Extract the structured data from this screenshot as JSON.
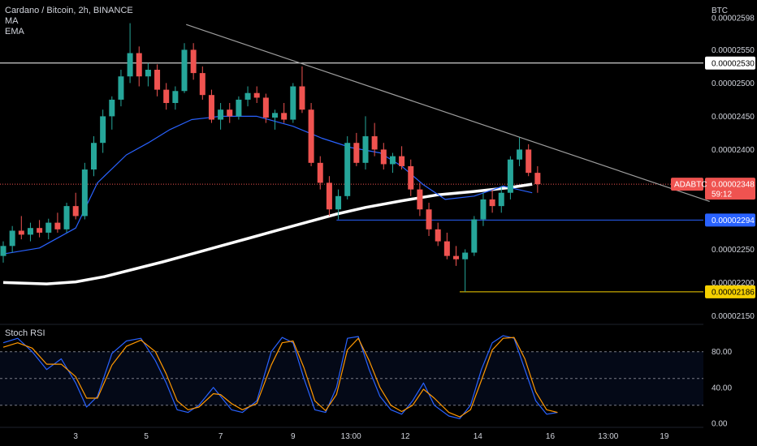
{
  "legend": {
    "symbol_line": "Cardano / Bitcoin, 2h, BINANCE",
    "ma": "MA",
    "ema": "EMA",
    "stoch_rsi": "Stoch RSI"
  },
  "colors": {
    "background": "#000000",
    "up": "#26a69a",
    "down": "#ef5350",
    "ma_line": "#ffffff",
    "ema_line": "#2962ff",
    "stoch_k": "#2962ff",
    "stoch_d": "#ff9800",
    "trendline": "#9e9e9e",
    "resistance": "#ffffff",
    "support": "#2962ff",
    "low_line": "#f5d000"
  },
  "chart_data": [
    {
      "type": "candlestick",
      "title": "Cardano / Bitcoin, 2h, BINANCE",
      "y_unit": "BTC",
      "ylim": [
        2.142e-05,
        2.62e-05
      ],
      "y_ticks": [
        "0.00002598",
        "0.00002550",
        "0.00002500",
        "0.00002450",
        "0.00002400",
        "0.00002250",
        "0.00002200",
        "0.00002150"
      ],
      "x_ticks": [
        "3",
        "5",
        "7",
        "9",
        "13:00",
        "12",
        "14",
        "16",
        "13:00",
        "19"
      ],
      "series": [
        {
          "name": "MA",
          "type": "line",
          "values": [
            [
              0,
              2.2e-05
            ],
            [
              1.2,
              2.198e-05
            ],
            [
              2.0,
              2.201e-05
            ],
            [
              2.8,
              2.209e-05
            ],
            [
              3.6,
              2.22e-05
            ],
            [
              4.4,
              2.231e-05
            ],
            [
              5.2,
              2.243e-05
            ],
            [
              6.0,
              2.255e-05
            ],
            [
              6.8,
              2.267e-05
            ],
            [
              7.6,
              2.279e-05
            ],
            [
              8.4,
              2.291e-05
            ],
            [
              9.2,
              2.303e-05
            ],
            [
              10.0,
              2.313e-05
            ],
            [
              11.0,
              2.323e-05
            ],
            [
              12.0,
              2.332e-05
            ],
            [
              13.0,
              2.337e-05
            ],
            [
              14.0,
              2.343e-05
            ],
            [
              14.6,
              2.348e-05
            ]
          ]
        },
        {
          "name": "EMA",
          "type": "line",
          "values": [
            [
              0,
              2.243e-05
            ],
            [
              1.0,
              2.252e-05
            ],
            [
              2.0,
              2.282e-05
            ],
            [
              2.6,
              2.35e-05
            ],
            [
              3.4,
              2.392e-05
            ],
            [
              4.0,
              2.41e-05
            ],
            [
              4.6,
              2.43e-05
            ],
            [
              5.2,
              2.445e-05
            ],
            [
              6.0,
              2.45e-05
            ],
            [
              7.0,
              2.45e-05
            ],
            [
              8.0,
              2.435e-05
            ],
            [
              8.8,
              2.417e-05
            ],
            [
              9.6,
              2.403e-05
            ],
            [
              10.4,
              2.395e-05
            ],
            [
              11.0,
              2.375e-05
            ],
            [
              11.6,
              2.347e-05
            ],
            [
              12.2,
              2.325e-05
            ],
            [
              13.0,
              2.33e-05
            ],
            [
              13.8,
              2.345e-05
            ],
            [
              14.6,
              2.335e-05
            ]
          ]
        }
      ],
      "annotations": [
        {
          "name": "trendline",
          "from": [
            5.05,
            2.588e-05
          ],
          "to": [
            19.5,
            2.322e-05
          ]
        },
        {
          "name": "resistance",
          "level": 2.53e-05,
          "label": "0.00002530"
        },
        {
          "name": "support",
          "level": 2.294e-05,
          "label": "0.00002294",
          "from_x": 9.2
        },
        {
          "name": "low",
          "level": 2.186e-05,
          "label": "0.00002186",
          "from_x": 12.6
        },
        {
          "name": "last_price",
          "level": 2.348e-05,
          "symbol": "ADABTC",
          "label": "0.00002348",
          "countdown": "59:12"
        }
      ],
      "candles": [
        [
          0.0,
          2.24e-05,
          2.262e-05,
          2.23e-05,
          2.255e-05
        ],
        [
          0.25,
          2.255e-05,
          2.285e-05,
          2.245e-05,
          2.278e-05
        ],
        [
          0.5,
          2.278e-05,
          2.3e-05,
          2.265e-05,
          2.272e-05
        ],
        [
          0.75,
          2.272e-05,
          2.29e-05,
          2.262e-05,
          2.282e-05
        ],
        [
          1.0,
          2.282e-05,
          2.294e-05,
          2.268e-05,
          2.275e-05
        ],
        [
          1.25,
          2.275e-05,
          2.296e-05,
          2.265e-05,
          2.29e-05
        ],
        [
          1.5,
          2.29e-05,
          2.305e-05,
          2.275e-05,
          2.28e-05
        ],
        [
          1.75,
          2.28e-05,
          2.32e-05,
          2.275e-05,
          2.315e-05
        ],
        [
          2.0,
          2.315e-05,
          2.335e-05,
          2.295e-05,
          2.3e-05
        ],
        [
          2.25,
          2.3e-05,
          2.38e-05,
          2.295e-05,
          2.37e-05
        ],
        [
          2.5,
          2.37e-05,
          2.42e-05,
          2.36e-05,
          2.41e-05
        ],
        [
          2.75,
          2.41e-05,
          2.46e-05,
          2.395e-05,
          2.45e-05
        ],
        [
          3.0,
          2.45e-05,
          2.48e-05,
          2.43e-05,
          2.475e-05
        ],
        [
          3.25,
          2.475e-05,
          2.52e-05,
          2.465e-05,
          2.51e-05
        ],
        [
          3.5,
          2.51e-05,
          2.59e-05,
          2.5e-05,
          2.545e-05
        ],
        [
          3.75,
          2.545e-05,
          2.555e-05,
          2.495e-05,
          2.51e-05
        ],
        [
          4.0,
          2.51e-05,
          2.53e-05,
          2.495e-05,
          2.52e-05
        ],
        [
          4.25,
          2.52e-05,
          2.528e-05,
          2.48e-05,
          2.49e-05
        ],
        [
          4.5,
          2.49e-05,
          2.5e-05,
          2.46e-05,
          2.47e-05
        ],
        [
          4.75,
          2.47e-05,
          2.495e-05,
          2.46e-05,
          2.488e-05
        ],
        [
          5.0,
          2.488e-05,
          2.56e-05,
          2.485e-05,
          2.55e-05
        ],
        [
          5.25,
          2.55e-05,
          2.56e-05,
          2.505e-05,
          2.515e-05
        ],
        [
          5.5,
          2.515e-05,
          2.525e-05,
          2.475e-05,
          2.482e-05
        ],
        [
          5.75,
          2.482e-05,
          2.49e-05,
          2.44e-05,
          2.445e-05
        ],
        [
          6.0,
          2.445e-05,
          2.47e-05,
          2.43e-05,
          2.46e-05
        ],
        [
          6.25,
          2.46e-05,
          2.47e-05,
          2.44e-05,
          2.45e-05
        ],
        [
          6.5,
          2.45e-05,
          2.48e-05,
          2.445e-05,
          2.475e-05
        ],
        [
          6.75,
          2.475e-05,
          2.495e-05,
          2.465e-05,
          2.485e-05
        ],
        [
          7.0,
          2.485e-05,
          2.495e-05,
          2.47e-05,
          2.478e-05
        ],
        [
          7.25,
          2.478e-05,
          2.484e-05,
          2.44e-05,
          2.448e-05
        ],
        [
          7.5,
          2.448e-05,
          2.46e-05,
          2.43e-05,
          2.455e-05
        ],
        [
          7.75,
          2.455e-05,
          2.47e-05,
          2.44e-05,
          2.445e-05
        ],
        [
          8.0,
          2.445e-05,
          2.5e-05,
          2.44e-05,
          2.495e-05
        ],
        [
          8.25,
          2.495e-05,
          2.525e-05,
          2.455e-05,
          2.46e-05
        ],
        [
          8.5,
          2.46e-05,
          2.47e-05,
          2.375e-05,
          2.38e-05
        ],
        [
          8.75,
          2.38e-05,
          2.39e-05,
          2.34e-05,
          2.35e-05
        ],
        [
          9.0,
          2.35e-05,
          2.36e-05,
          2.3e-05,
          2.31e-05
        ],
        [
          9.25,
          2.31e-05,
          2.34e-05,
          2.295e-05,
          2.33e-05
        ],
        [
          9.5,
          2.33e-05,
          2.42e-05,
          2.325e-05,
          2.41e-05
        ],
        [
          9.75,
          2.41e-05,
          2.425e-05,
          2.375e-05,
          2.38e-05
        ],
        [
          10.0,
          2.38e-05,
          2.45e-05,
          2.37e-05,
          2.42e-05
        ],
        [
          10.25,
          2.42e-05,
          2.44e-05,
          2.39e-05,
          2.4e-05
        ],
        [
          10.5,
          2.4e-05,
          2.41e-05,
          2.37e-05,
          2.378e-05
        ],
        [
          10.75,
          2.378e-05,
          2.395e-05,
          2.365e-05,
          2.39e-05
        ],
        [
          11.0,
          2.39e-05,
          2.405e-05,
          2.37e-05,
          2.375e-05
        ],
        [
          11.25,
          2.375e-05,
          2.385e-05,
          2.33e-05,
          2.34e-05
        ],
        [
          11.5,
          2.34e-05,
          2.35e-05,
          2.3e-05,
          2.31e-05
        ],
        [
          11.75,
          2.31e-05,
          2.32e-05,
          2.27e-05,
          2.28e-05
        ],
        [
          12.0,
          2.28e-05,
          2.29e-05,
          2.255e-05,
          2.262e-05
        ],
        [
          12.25,
          2.262e-05,
          2.275e-05,
          2.235e-05,
          2.24e-05
        ],
        [
          12.5,
          2.24e-05,
          2.255e-05,
          2.225e-05,
          2.235e-05
        ],
        [
          12.75,
          2.235e-05,
          2.25e-05,
          2.186e-05,
          2.245e-05
        ],
        [
          13.0,
          2.245e-05,
          2.3e-05,
          2.24e-05,
          2.295e-05
        ],
        [
          13.25,
          2.295e-05,
          2.335e-05,
          2.285e-05,
          2.325e-05
        ],
        [
          13.5,
          2.325e-05,
          2.34e-05,
          2.305e-05,
          2.315e-05
        ],
        [
          13.75,
          2.315e-05,
          2.345e-05,
          2.305e-05,
          2.335e-05
        ],
        [
          14.0,
          2.335e-05,
          2.39e-05,
          2.325e-05,
          2.385e-05
        ],
        [
          14.25,
          2.385e-05,
          2.418e-05,
          2.375e-05,
          2.4e-05
        ],
        [
          14.5,
          2.4e-05,
          2.408e-05,
          2.36e-05,
          2.365e-05
        ],
        [
          14.75,
          2.365e-05,
          2.375e-05,
          2.335e-05,
          2.348e-05
        ]
      ]
    },
    {
      "type": "line",
      "title": "Stoch RSI",
      "ylim": [
        -2,
        107
      ],
      "y_ticks": [
        "80.00",
        "40.00",
        "0.00"
      ],
      "bands": [
        80,
        50,
        20
      ],
      "series": [
        {
          "name": "K",
          "values": [
            [
              0,
              90
            ],
            [
              0.4,
              95
            ],
            [
              0.8,
              80
            ],
            [
              1.2,
              60
            ],
            [
              1.6,
              72
            ],
            [
              2.0,
              45
            ],
            [
              2.3,
              18
            ],
            [
              2.6,
              30
            ],
            [
              3.0,
              78
            ],
            [
              3.4,
              92
            ],
            [
              3.8,
              95
            ],
            [
              4.2,
              70
            ],
            [
              4.5,
              45
            ],
            [
              4.8,
              15
            ],
            [
              5.1,
              12
            ],
            [
              5.4,
              20
            ],
            [
              5.8,
              40
            ],
            [
              6.0,
              30
            ],
            [
              6.3,
              15
            ],
            [
              6.6,
              12
            ],
            [
              7.0,
              25
            ],
            [
              7.4,
              80
            ],
            [
              7.7,
              96
            ],
            [
              8.0,
              90
            ],
            [
              8.3,
              50
            ],
            [
              8.6,
              15
            ],
            [
              8.9,
              12
            ],
            [
              9.2,
              40
            ],
            [
              9.5,
              95
            ],
            [
              9.8,
              97
            ],
            [
              10.1,
              60
            ],
            [
              10.4,
              30
            ],
            [
              10.7,
              15
            ],
            [
              11.0,
              10
            ],
            [
              11.3,
              25
            ],
            [
              11.6,
              45
            ],
            [
              11.9,
              20
            ],
            [
              12.3,
              8
            ],
            [
              12.6,
              5
            ],
            [
              12.9,
              20
            ],
            [
              13.2,
              60
            ],
            [
              13.5,
              90
            ],
            [
              13.8,
              98
            ],
            [
              14.1,
              95
            ],
            [
              14.4,
              60
            ],
            [
              14.7,
              25
            ],
            [
              15.0,
              10
            ],
            [
              15.3,
              12
            ]
          ]
        },
        {
          "name": "D",
          "values": [
            [
              0,
              85
            ],
            [
              0.4,
              90
            ],
            [
              0.8,
              84
            ],
            [
              1.2,
              66
            ],
            [
              1.6,
              66
            ],
            [
              2.0,
              52
            ],
            [
              2.3,
              28
            ],
            [
              2.6,
              28
            ],
            [
              3.0,
              65
            ],
            [
              3.4,
              86
            ],
            [
              3.8,
              93
            ],
            [
              4.2,
              80
            ],
            [
              4.5,
              55
            ],
            [
              4.8,
              25
            ],
            [
              5.1,
              15
            ],
            [
              5.4,
              18
            ],
            [
              5.8,
              33
            ],
            [
              6.0,
              32
            ],
            [
              6.3,
              22
            ],
            [
              6.6,
              15
            ],
            [
              7.0,
              22
            ],
            [
              7.4,
              65
            ],
            [
              7.7,
              90
            ],
            [
              8.0,
              92
            ],
            [
              8.3,
              62
            ],
            [
              8.6,
              25
            ],
            [
              8.9,
              14
            ],
            [
              9.2,
              32
            ],
            [
              9.5,
              82
            ],
            [
              9.8,
              95
            ],
            [
              10.1,
              70
            ],
            [
              10.4,
              40
            ],
            [
              10.7,
              20
            ],
            [
              11.0,
              13
            ],
            [
              11.3,
              20
            ],
            [
              11.6,
              38
            ],
            [
              11.9,
              28
            ],
            [
              12.3,
              12
            ],
            [
              12.6,
              7
            ],
            [
              12.9,
              15
            ],
            [
              13.2,
              48
            ],
            [
              13.5,
              82
            ],
            [
              13.8,
              95
            ],
            [
              14.1,
              96
            ],
            [
              14.4,
              72
            ],
            [
              14.7,
              35
            ],
            [
              15.0,
              15
            ],
            [
              15.3,
              12
            ]
          ]
        }
      ]
    }
  ]
}
